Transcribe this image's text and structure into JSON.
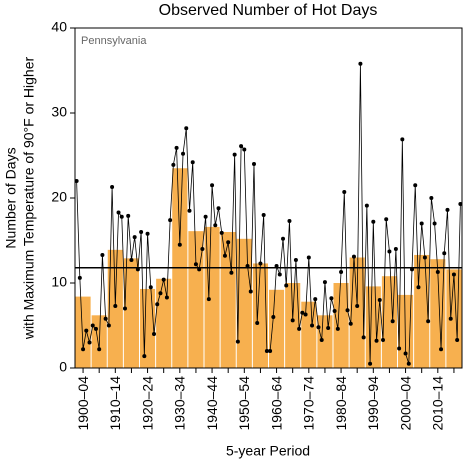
{
  "chart_data": {
    "type": "bar_line",
    "title": "Observed Number of Hot Days",
    "annotation": "Pennsylvania",
    "ylabel": [
      "Number of Days",
      "with Maximum Temperature of 90°F or Higher"
    ],
    "xlabel": "5-year Period",
    "categories": [
      "1900–04",
      null,
      "1910–14",
      null,
      "1920–24",
      null,
      "1930–34",
      null,
      "1940–44",
      null,
      "1950–54",
      null,
      "1960–64",
      null,
      "1970–74",
      null,
      "1980–84",
      null,
      "1990–94",
      null,
      "2000–04",
      null,
      "2010–14",
      null
    ],
    "series": [
      {
        "color": "#f7b04f",
        "values": [
          8.4,
          6.2,
          13.9,
          12.9,
          9.3,
          10.5,
          23.5,
          16.1,
          16.6,
          16.0,
          15.2,
          12.3,
          9.2,
          10.0,
          7.8,
          6.2,
          10.0,
          13.0,
          9.6,
          10.8,
          8.6,
          13.3,
          12.8,
          11.6
        ]
      },
      {
        "color": "#000000",
        "x": [
          1900,
          1901,
          1902,
          1903,
          1904,
          1905,
          1906,
          1907,
          1908,
          1909,
          1910,
          1911,
          1912,
          1913,
          1914,
          1915,
          1916,
          1917,
          1918,
          1919,
          1920,
          1921,
          1922,
          1923,
          1924,
          1925,
          1926,
          1927,
          1928,
          1929,
          1930,
          1931,
          1932,
          1933,
          1934,
          1935,
          1936,
          1937,
          1938,
          1939,
          1940,
          1941,
          1942,
          1943,
          1944,
          1945,
          1946,
          1947,
          1948,
          1949,
          1950,
          1951,
          1952,
          1953,
          1954,
          1955,
          1956,
          1957,
          1958,
          1959,
          1960,
          1961,
          1962,
          1963,
          1964,
          1965,
          1966,
          1967,
          1968,
          1969,
          1970,
          1971,
          1972,
          1973,
          1974,
          1975,
          1976,
          1977,
          1978,
          1979,
          1980,
          1981,
          1982,
          1983,
          1984,
          1985,
          1986,
          1987,
          1988,
          1989,
          1990,
          1991,
          1992,
          1993,
          1994,
          1995,
          1996,
          1997,
          1998,
          1999,
          2000,
          2001,
          2002,
          2003,
          2004,
          2005,
          2006,
          2007,
          2008,
          2009,
          2010,
          2011,
          2012,
          2013,
          2014,
          2015,
          2016,
          2017,
          2018,
          2019
        ],
        "values": [
          22,
          10.6,
          2.2,
          4.4,
          3.0,
          5.0,
          4.6,
          2.2,
          13.3,
          5.8,
          5.0,
          21.3,
          7.3,
          18.3,
          17.8,
          7.0,
          17.9,
          12.7,
          15.4,
          11.6,
          16.0,
          1.4,
          15.8,
          9.5,
          4.0,
          7.5,
          8.8,
          10.4,
          8.3,
          17.4,
          23.9,
          25.9,
          14.5,
          25.2,
          28.2,
          18.5,
          24.2,
          12.2,
          11.6,
          14.0,
          17.8,
          8.1,
          21.5,
          16.8,
          18.8,
          15.9,
          13.2,
          14.8,
          11.2,
          25.1,
          3.1,
          26.1,
          25.7,
          12.0,
          9.0,
          24.0,
          5.3,
          12.3,
          18.0,
          2.0,
          2.0,
          6.0,
          12.0,
          11.0,
          15.2,
          9.7,
          17.3,
          5.6,
          12.7,
          4.6,
          6.5,
          6.3,
          13.0,
          5.0,
          8.1,
          4.8,
          3.3,
          10.1,
          4.7,
          8.2,
          6.7,
          4.6,
          11.3,
          20.7,
          6.8,
          5.2,
          13.1,
          7.3,
          35.8,
          3.6,
          19.1,
          0.5,
          17.2,
          3.2,
          8.0,
          3.3,
          17.5,
          13.7,
          5.5,
          14.0,
          2.3,
          26.9,
          1.7,
          0.5,
          11.6,
          21.5,
          9.5,
          17.0,
          13.0,
          5.5,
          20.0,
          17.0,
          11.3,
          2.2,
          13.5,
          18.6,
          5.8,
          11.0,
          3.3,
          19.3
        ]
      }
    ],
    "reference_line": 11.8,
    "xlim": [
      1900,
      2020
    ],
    "ylim": [
      0,
      40
    ],
    "yticks": [
      0,
      10,
      20,
      30,
      40
    ]
  }
}
